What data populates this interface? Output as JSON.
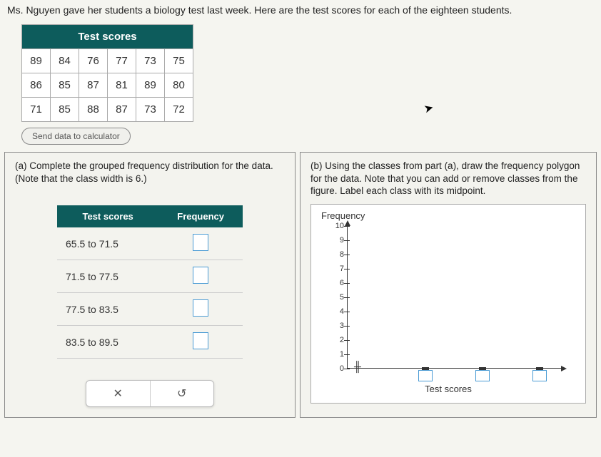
{
  "prompt": "Ms. Nguyen gave her students a biology test last week. Here are the test scores for each of the eighteen students.",
  "table": {
    "header": "Test scores",
    "rows": [
      [
        "89",
        "84",
        "76",
        "77",
        "73",
        "75"
      ],
      [
        "86",
        "85",
        "87",
        "81",
        "89",
        "80"
      ],
      [
        "71",
        "85",
        "88",
        "87",
        "73",
        "72"
      ]
    ]
  },
  "sendButton": "Send data to calculator",
  "partA": {
    "text": "(a) Complete the grouped frequency distribution for the data. (Note that the class width is 6.)",
    "col1": "Test scores",
    "col2": "Frequency",
    "rows": [
      "65.5 to 71.5",
      "71.5 to 77.5",
      "77.5 to 83.5",
      "83.5 to 89.5"
    ]
  },
  "partB": {
    "text": "(b) Using the classes from part (a), draw the frequency polygon for the data. Note that you can add or remove classes from the figure. Label each class with its midpoint.",
    "chartTitle": "Frequency",
    "xLabel": "Test scores",
    "yticks": [
      "0",
      "1",
      "2",
      "3",
      "4",
      "5",
      "6",
      "7",
      "8",
      "9",
      "10"
    ],
    "ymax": 10,
    "xInputPositions": [
      110,
      190,
      270
    ]
  },
  "colors": {
    "headerBg": "#0d5c5c",
    "inputBorder": "#4a9bd4"
  }
}
